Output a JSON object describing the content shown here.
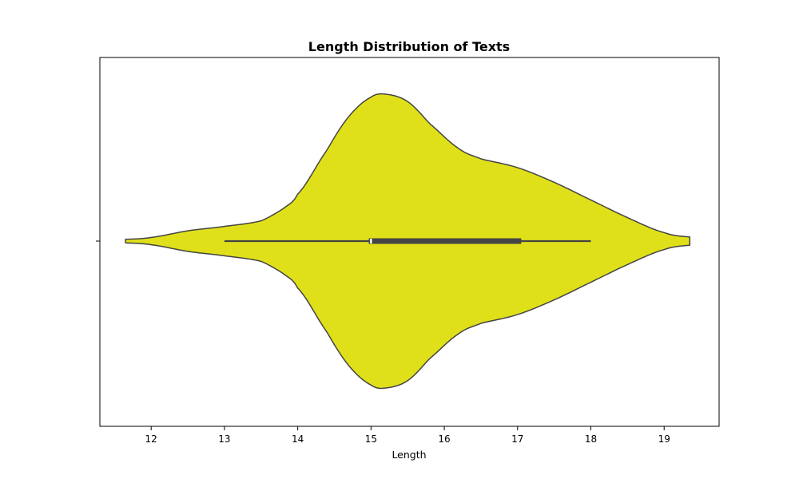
{
  "chart_data": {
    "type": "violin",
    "title": "Length Distribution of Texts",
    "xlabel": "Length",
    "ylabel": "",
    "xlim": [
      11.3,
      19.75
    ],
    "xticks": [
      12,
      13,
      14,
      15,
      16,
      17,
      18,
      19
    ],
    "grid": false,
    "fill_color": "#e0e01a",
    "edge_color": "#444444",
    "density_profile": {
      "x": [
        11.65,
        12.0,
        12.5,
        13.0,
        13.5,
        13.8,
        14.0,
        14.4,
        14.7,
        15.0,
        15.2,
        15.5,
        15.8,
        16.2,
        16.5,
        17.0,
        17.5,
        18.0,
        18.5,
        19.0,
        19.35
      ],
      "relative_width": [
        0.012,
        0.025,
        0.07,
        0.1,
        0.138,
        0.22,
        0.32,
        0.62,
        0.85,
        0.98,
        1.0,
        0.95,
        0.8,
        0.63,
        0.56,
        0.5,
        0.4,
        0.28,
        0.16,
        0.058,
        0.028
      ]
    },
    "box": {
      "whisker_low": 13.0,
      "q1": 14.97,
      "median": 15.0,
      "q3": 17.05,
      "whisker_high": 18.0
    }
  }
}
